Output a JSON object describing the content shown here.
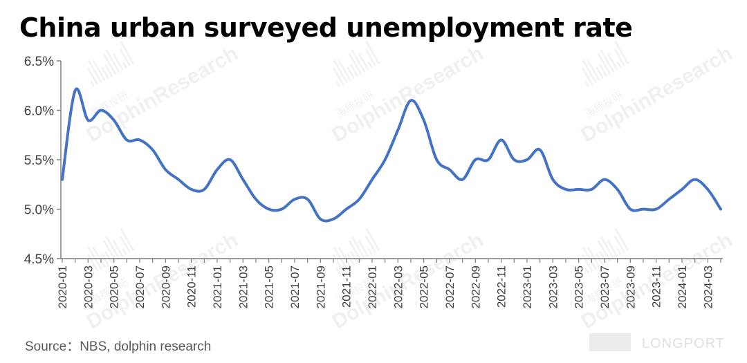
{
  "title": "China urban surveyed unemployment rate",
  "source": "Source：NBS, dolphin research",
  "watermark": {
    "brand": "DolphinResearch",
    "brand_cn": "海豚投研",
    "corner": "LONGPORT"
  },
  "colors": {
    "line": "#4472C4",
    "axis": "#7f7f7f",
    "text": "#404040"
  },
  "chart_data": {
    "type": "line",
    "title": "China urban surveyed unemployment rate",
    "ylim": [
      4.5,
      6.5
    ],
    "y_ticks": [
      "4.5%",
      "5.0%",
      "5.5%",
      "6.0%",
      "6.5%"
    ],
    "grid": false,
    "x": [
      "2020-01",
      "2020-02",
      "2020-03",
      "2020-04",
      "2020-05",
      "2020-06",
      "2020-07",
      "2020-08",
      "2020-09",
      "2020-10",
      "2020-11",
      "2020-12",
      "2021-01",
      "2021-02",
      "2021-03",
      "2021-04",
      "2021-05",
      "2021-06",
      "2021-07",
      "2021-08",
      "2021-09",
      "2021-10",
      "2021-11",
      "2021-12",
      "2022-01",
      "2022-02",
      "2022-03",
      "2022-04",
      "2022-05",
      "2022-06",
      "2022-07",
      "2022-08",
      "2022-09",
      "2022-10",
      "2022-11",
      "2022-12",
      "2023-01",
      "2023-02",
      "2023-03",
      "2023-04",
      "2023-05",
      "2023-06",
      "2023-07",
      "2023-08",
      "2023-09",
      "2023-10",
      "2023-11",
      "2023-12",
      "2024-01",
      "2024-02",
      "2024-03",
      "2024-04"
    ],
    "x_tick_labels": [
      "2020-01",
      "2020-03",
      "2020-05",
      "2020-07",
      "2020-09",
      "2020-11",
      "2021-01",
      "2021-03",
      "2021-05",
      "2021-07",
      "2021-09",
      "2021-11",
      "2022-01",
      "2022-03",
      "2022-05",
      "2022-07",
      "2022-09",
      "2022-11",
      "2023-01",
      "2023-03",
      "2023-05",
      "2023-07",
      "2023-09",
      "2023-11",
      "2024-01",
      "2024-03"
    ],
    "series": [
      {
        "values": [
          5.3,
          6.2,
          5.9,
          6.0,
          5.9,
          5.7,
          5.7,
          5.6,
          5.4,
          5.3,
          5.2,
          5.2,
          5.4,
          5.5,
          5.3,
          5.1,
          5.0,
          5.0,
          5.1,
          5.1,
          4.9,
          4.9,
          5.0,
          5.1,
          5.3,
          5.5,
          5.8,
          6.1,
          5.9,
          5.5,
          5.4,
          5.3,
          5.5,
          5.5,
          5.7,
          5.5,
          5.5,
          5.6,
          5.3,
          5.2,
          5.2,
          5.2,
          5.3,
          5.2,
          5.0,
          5.0,
          5.0,
          5.1,
          5.2,
          5.3,
          5.2,
          5.0
        ]
      }
    ]
  }
}
